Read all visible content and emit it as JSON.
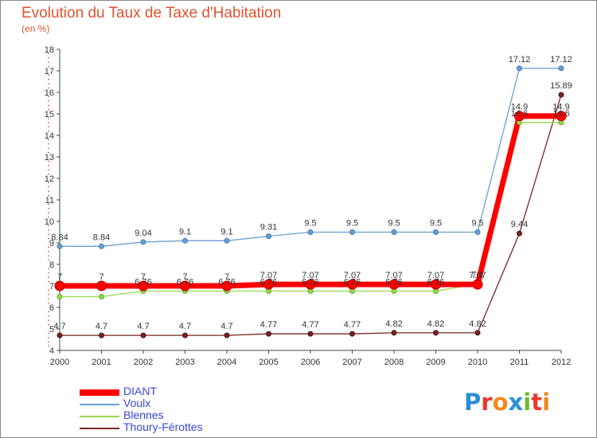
{
  "title": "Evolution du Taux de Taxe d'Habitation",
  "subtitle": "(en %)",
  "logo": {
    "text": [
      "P",
      "r",
      "o",
      "x",
      "i",
      "t",
      "i"
    ],
    "colors": [
      "#2a8fd6",
      "#e8392c",
      "#f08a1c",
      "#2a8fd6",
      "#6fb92c",
      "#e8392c",
      "#f08a1c"
    ]
  },
  "chart_data": {
    "type": "line",
    "x": [
      "2000",
      "2001",
      "2002",
      "2003",
      "2004",
      "2005",
      "2006",
      "2007",
      "2008",
      "2009",
      "2010",
      "2011",
      "2012"
    ],
    "yticks": [
      "4",
      "5",
      "6",
      "7",
      "8",
      "9",
      "10",
      "11",
      "12",
      "13",
      "14",
      "15",
      "16",
      "17",
      "18"
    ],
    "ylim": [
      4,
      18
    ],
    "legend_position": "bottom-left",
    "grid": false,
    "series": [
      {
        "name": "DIANT",
        "color": "#ff0000",
        "values": [
          7,
          7,
          7,
          7,
          7,
          7.07,
          7.07,
          7.07,
          7.07,
          7.07,
          7.07,
          14.9,
          14.9
        ],
        "labels": [
          "7",
          "7",
          "7",
          "7",
          "7",
          "7.07",
          "7.07",
          "7.07",
          "7.07",
          "7.07",
          "7.07",
          "14.9",
          "14.9"
        ]
      },
      {
        "name": "Voulx",
        "color": "#6a9fd0",
        "values": [
          8.84,
          8.84,
          9.04,
          9.1,
          9.1,
          9.31,
          9.5,
          9.5,
          9.5,
          9.5,
          9.5,
          17.12,
          17.12
        ],
        "labels": [
          "8.84",
          "8.84",
          "9.04",
          "9.1",
          "9.1",
          "9.31",
          "9.5",
          "9.5",
          "9.5",
          "9.5",
          "9.5",
          "17.12",
          "17.12"
        ]
      },
      {
        "name": "Blennes",
        "color": "#9ad84a",
        "values": [
          6.5,
          6.5,
          6.76,
          6.76,
          6.76,
          6.76,
          6.76,
          6.76,
          6.76,
          6.76,
          7.1,
          14.6,
          14.6
        ],
        "labels": [
          "",
          "",
          "6.76",
          "6.76",
          "6.76",
          "6.76",
          "6.76",
          "6.76",
          "6.76",
          "6.76",
          "7.1",
          "14.6",
          "14.6"
        ]
      },
      {
        "name": "Thoury-Férottes",
        "color": "#7a2424",
        "values": [
          4.7,
          4.7,
          4.7,
          4.7,
          4.7,
          4.77,
          4.77,
          4.77,
          4.82,
          4.82,
          4.82,
          9.44,
          15.89
        ],
        "labels": [
          "4.7",
          "4.7",
          "4.7",
          "4.7",
          "4.7",
          "4.77",
          "4.77",
          "4.77",
          "4.82",
          "4.82",
          "4.82",
          "9.44",
          "15.89"
        ]
      }
    ]
  }
}
